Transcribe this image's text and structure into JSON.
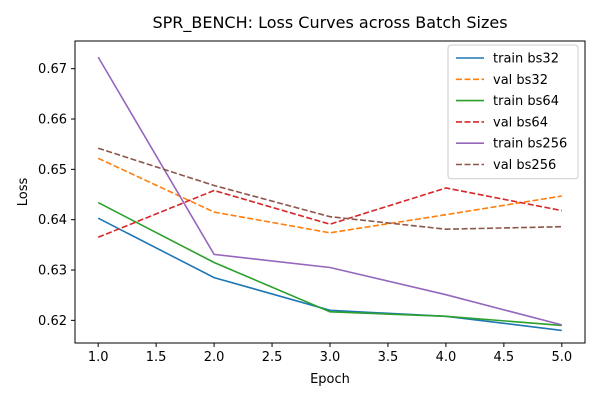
{
  "chart_data": {
    "type": "line",
    "title": "SPR_BENCH: Loss Curves across Batch Sizes",
    "xlabel": "Epoch",
    "ylabel": "Loss",
    "x": [
      1,
      2,
      3,
      4,
      5
    ],
    "xlim": [
      0.8,
      5.2
    ],
    "ylim": [
      0.6155,
      0.6755
    ],
    "xticks": [
      "1.0",
      "1.5",
      "2.0",
      "2.5",
      "3.0",
      "3.5",
      "4.0",
      "4.5",
      "5.0"
    ],
    "yticks": [
      "0.62",
      "0.63",
      "0.64",
      "0.65",
      "0.66",
      "0.67"
    ],
    "grid": false,
    "legend_position": "top-right",
    "series": [
      {
        "name": "train bs32",
        "values": [
          0.6403,
          0.6285,
          0.622,
          0.6208,
          0.618
        ],
        "color": "#1f77b4",
        "dash": "solid"
      },
      {
        "name": "val bs32",
        "values": [
          0.6522,
          0.6415,
          0.6374,
          0.641,
          0.6447
        ],
        "color": "#ff7f0e",
        "dash": "dashed"
      },
      {
        "name": "train bs64",
        "values": [
          0.6434,
          0.6315,
          0.6217,
          0.6208,
          0.619
        ],
        "color": "#2ca02c",
        "dash": "solid"
      },
      {
        "name": "val bs64",
        "values": [
          0.6365,
          0.6458,
          0.6391,
          0.6463,
          0.6418
        ],
        "color": "#d62728",
        "dash": "dashed"
      },
      {
        "name": "train bs256",
        "values": [
          0.6723,
          0.6331,
          0.6305,
          0.6251,
          0.6191
        ],
        "color": "#9467bd",
        "dash": "solid"
      },
      {
        "name": "val bs256",
        "values": [
          0.6542,
          0.6468,
          0.6406,
          0.6381,
          0.6386
        ],
        "color": "#8c564b",
        "dash": "dashed"
      }
    ]
  }
}
